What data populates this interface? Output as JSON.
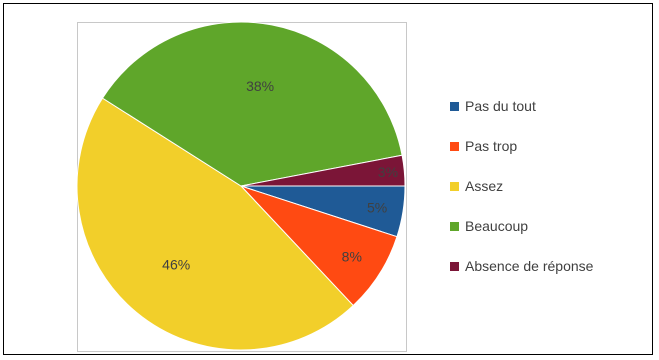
{
  "chart_data": {
    "type": "pie",
    "title": "",
    "start_angle_deg": 0,
    "direction": "clockwise",
    "slices": [
      {
        "label": "Pas du tout",
        "value": 5,
        "display": "5%",
        "color": "#1f5a96"
      },
      {
        "label": "Pas trop",
        "value": 8,
        "display": "8%",
        "color": "#ff4a12"
      },
      {
        "label": "Assez",
        "value": 46,
        "display": "46%",
        "color": "#f2cf2a"
      },
      {
        "label": "Beaucoup",
        "value": 38,
        "display": "38%",
        "color": "#5fa62a"
      },
      {
        "label": "Absence de réponse",
        "value": 3,
        "display": "3%",
        "color": "#7b1537"
      }
    ],
    "legend_position": "right"
  }
}
